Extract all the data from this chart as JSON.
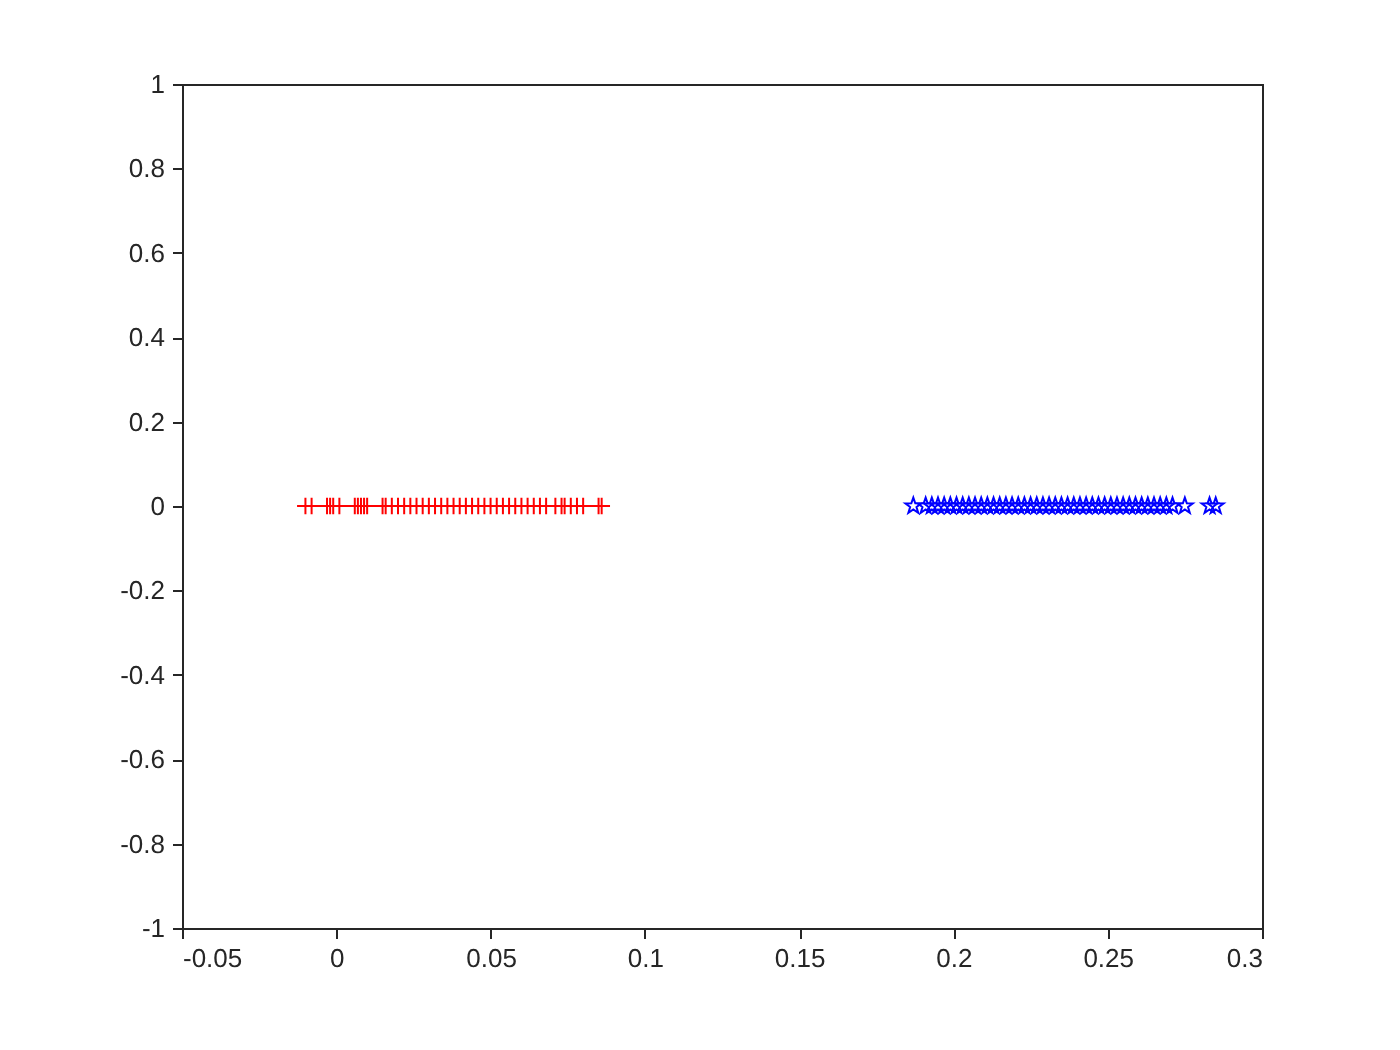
{
  "chart_data": {
    "type": "scatter",
    "xlim": [
      -0.05,
      0.3
    ],
    "xticks": [
      -0.05,
      0,
      0.05,
      0.1,
      0.15,
      0.2,
      0.25,
      0.3
    ],
    "ylim": [
      -1,
      1
    ],
    "yticks": [
      -1,
      -0.8,
      -0.6,
      -0.4,
      -0.2,
      0,
      0.2,
      0.4,
      0.6,
      0.8,
      1
    ],
    "grid": false,
    "series": [
      {
        "color": "#ff0000",
        "marker": "cross",
        "x": [
          -0.01,
          -0.008,
          -0.003,
          -0.002,
          -0.001,
          0.001,
          0.006,
          0.007,
          0.008,
          0.009,
          0.01,
          0.015,
          0.016,
          0.018,
          0.02,
          0.022,
          0.024,
          0.026,
          0.028,
          0.03,
          0.032,
          0.034,
          0.036,
          0.038,
          0.04,
          0.042,
          0.044,
          0.046,
          0.048,
          0.05,
          0.052,
          0.054,
          0.056,
          0.058,
          0.06,
          0.062,
          0.064,
          0.066,
          0.068,
          0.071,
          0.073,
          0.074,
          0.076,
          0.078,
          0.08,
          0.085,
          0.086
        ],
        "values": [
          0,
          0,
          0,
          0,
          0,
          0,
          0,
          0,
          0,
          0,
          0,
          0,
          0,
          0,
          0,
          0,
          0,
          0,
          0,
          0,
          0,
          0,
          0,
          0,
          0,
          0,
          0,
          0,
          0,
          0,
          0,
          0,
          0,
          0,
          0,
          0,
          0,
          0,
          0,
          0,
          0,
          0,
          0,
          0,
          0,
          0,
          0
        ]
      },
      {
        "color": "#0000ff",
        "marker": "star",
        "x": [
          0.187,
          0.191,
          0.193,
          0.195,
          0.197,
          0.199,
          0.201,
          0.203,
          0.205,
          0.207,
          0.209,
          0.211,
          0.213,
          0.215,
          0.217,
          0.219,
          0.221,
          0.223,
          0.225,
          0.227,
          0.229,
          0.231,
          0.233,
          0.235,
          0.237,
          0.239,
          0.241,
          0.243,
          0.245,
          0.247,
          0.249,
          0.251,
          0.253,
          0.255,
          0.257,
          0.259,
          0.261,
          0.263,
          0.265,
          0.267,
          0.269,
          0.271,
          0.275,
          0.283,
          0.285
        ],
        "values": [
          0,
          0,
          0,
          0,
          0,
          0,
          0,
          0,
          0,
          0,
          0,
          0,
          0,
          0,
          0,
          0,
          0,
          0,
          0,
          0,
          0,
          0,
          0,
          0,
          0,
          0,
          0,
          0,
          0,
          0,
          0,
          0,
          0,
          0,
          0,
          0,
          0,
          0,
          0,
          0,
          0,
          0,
          0,
          0,
          0
        ]
      }
    ]
  }
}
